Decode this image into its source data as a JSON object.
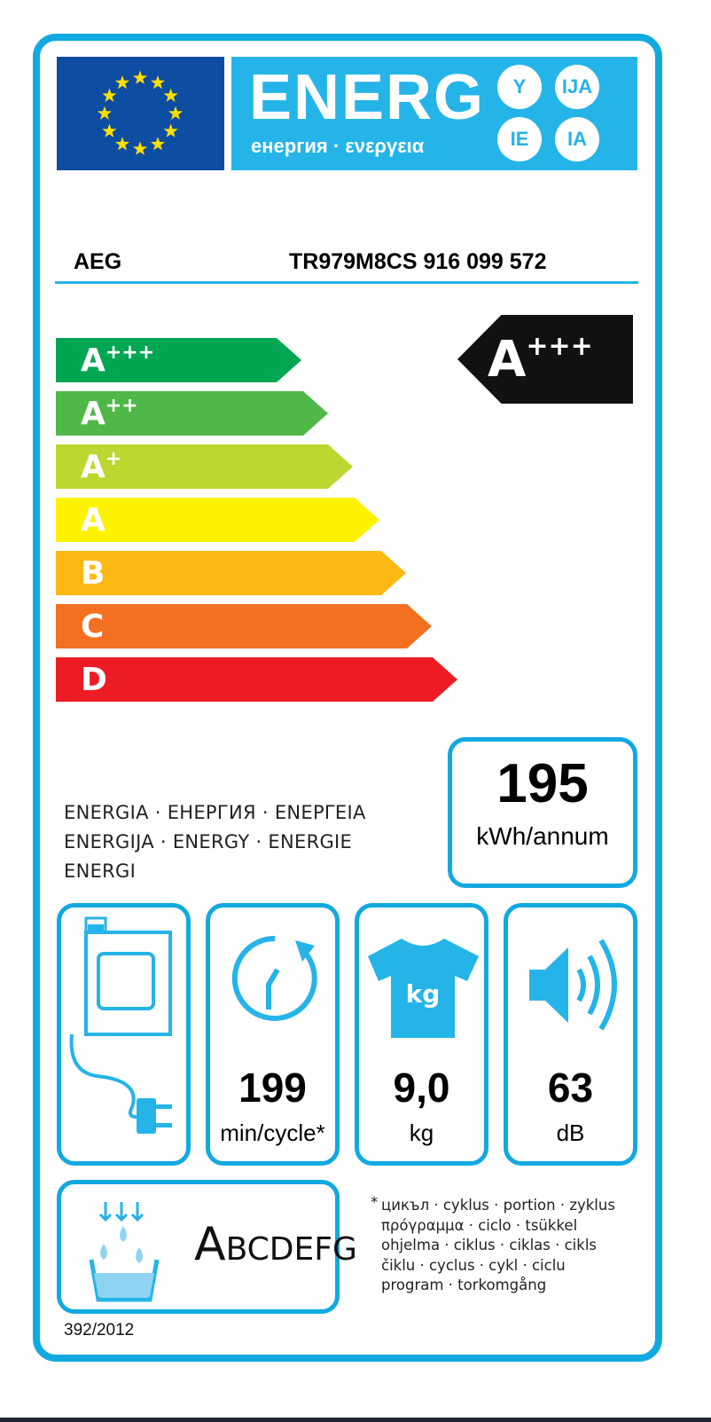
{
  "header": {
    "title": "ENERG",
    "subtitle": "енергия · ενεργεια",
    "suffixes": [
      "Y",
      "IJA",
      "IE",
      "IA"
    ]
  },
  "supplier": "AEG",
  "model": "TR979M8CS  916 099 572",
  "scale": [
    {
      "class": "A",
      "sup": "+++",
      "color": "#00a651"
    },
    {
      "class": "A",
      "sup": "++",
      "color": "#50b848"
    },
    {
      "class": "A",
      "sup": "+",
      "color": "#bed630"
    },
    {
      "class": "A",
      "sup": "",
      "color": "#fff200"
    },
    {
      "class": "B",
      "sup": "",
      "color": "#fdb913"
    },
    {
      "class": "C",
      "sup": "",
      "color": "#f37021"
    },
    {
      "class": "D",
      "sup": "",
      "color": "#ed1c24"
    }
  ],
  "rating": {
    "class": "A",
    "sup": "+++"
  },
  "energy": {
    "value": "195",
    "unit": "kWh/annum",
    "label_lines": [
      "ENERGIA · ЕНЕРГИЯ · ΕΝΕΡΓΕΙΑ",
      "ENERGIJA · ENERGY · ENERGIE",
      "ENERGI"
    ]
  },
  "dryer_type": {
    "icon": "vented-dryer-icon"
  },
  "cycle": {
    "value": "199",
    "unit": "min/cycle*",
    "icon": "clock-icon"
  },
  "capacity": {
    "value": "9,0",
    "unit": "kg",
    "icon": "tshirt-kg-icon",
    "icon_text": "kg"
  },
  "noise": {
    "value": "63",
    "unit": "dB",
    "icon": "speaker-icon"
  },
  "condensation": {
    "first": "A",
    "rest": "BCDEFG",
    "icon": "water-basin-icon"
  },
  "footnote": {
    "star": "*",
    "lines": [
      "цикъл · cyklus · portion · zyklus",
      "πρόγραμμα · ciclo · tsükkel",
      "ohjelma · ciklus · ciklas · cikls",
      "čiklu · cyclus · cykl · ciclu",
      "program · torkomgång"
    ]
  },
  "regulation": "392/2012",
  "colors": {
    "frame": "#12a9e0",
    "flag": "#0d4ea2",
    "energy_band": "#25b4e8",
    "stars": "#ffdd00"
  }
}
